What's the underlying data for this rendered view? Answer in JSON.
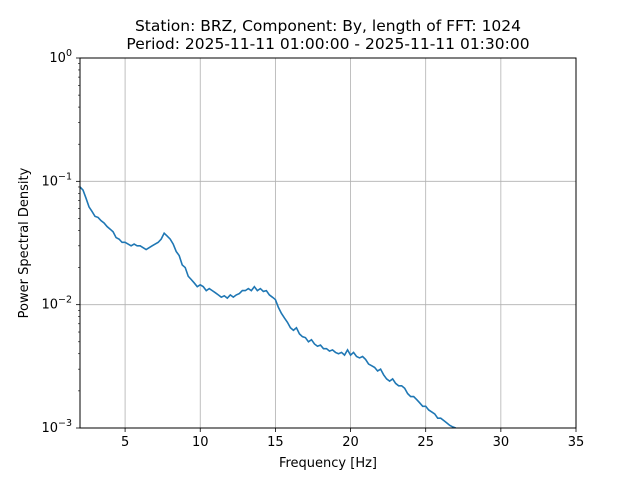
{
  "chart_data": {
    "type": "line",
    "title_line1": "Station: BRZ, Component: By, length of FFT: 1024",
    "title_line2": "Period: 2025-11-11 01:00:00 - 2025-11-11 01:30:00",
    "xlabel": "Frequency [Hz]",
    "ylabel": "Power Spectral Density",
    "xlim": [
      2,
      35
    ],
    "ylim": [
      0.001,
      1
    ],
    "yscale": "log",
    "grid": true,
    "x_ticks": [
      5,
      10,
      15,
      20,
      25,
      30,
      35
    ],
    "x_tick_labels": [
      "5",
      "10",
      "15",
      "20",
      "25",
      "30",
      "35"
    ],
    "y_ticks": [
      0.001,
      0.01,
      0.1,
      1
    ],
    "y_tick_labels": [
      {
        "base": "10",
        "exp": "−3"
      },
      {
        "base": "10",
        "exp": "−2"
      },
      {
        "base": "10",
        "exp": "−1"
      },
      {
        "base": "10",
        "exp": "0"
      }
    ],
    "line_color": "#1f77b4",
    "series": [
      {
        "x": [
          2.0,
          2.2,
          2.4,
          2.6,
          2.8,
          3.0,
          3.2,
          3.4,
          3.6,
          3.8,
          4.0,
          4.2,
          4.4,
          4.6,
          4.8,
          5.0,
          5.2,
          5.4,
          5.6,
          5.8,
          6.0,
          6.2,
          6.4,
          6.6,
          6.8,
          7.0,
          7.2,
          7.4,
          7.6,
          7.8,
          8.0,
          8.2,
          8.4,
          8.6,
          8.8,
          9.0,
          9.2,
          9.4,
          9.6,
          9.8,
          10.0,
          10.2,
          10.4,
          10.6,
          10.8,
          11.0,
          11.2,
          11.4,
          11.6,
          11.8,
          12.0,
          12.2,
          12.4,
          12.6,
          12.8,
          13.0,
          13.2,
          13.4,
          13.6,
          13.8,
          14.0,
          14.2,
          14.4,
          14.6,
          14.8,
          15.0,
          15.2,
          15.4,
          15.6,
          15.8,
          16.0,
          16.2,
          16.4,
          16.6,
          16.8,
          17.0,
          17.2,
          17.4,
          17.6,
          17.8,
          18.0,
          18.2,
          18.4,
          18.6,
          18.8,
          19.0,
          19.2,
          19.4,
          19.6,
          19.8,
          20.0,
          20.2,
          20.4,
          20.6,
          20.8,
          21.0,
          21.2,
          21.4,
          21.6,
          21.8,
          22.0,
          22.2,
          22.4,
          22.6,
          22.8,
          23.0,
          23.2,
          23.4,
          23.6,
          23.8,
          24.0,
          24.2,
          24.4,
          24.6,
          24.8,
          25.0,
          25.2,
          25.4,
          25.6,
          25.8,
          26.0,
          26.2,
          26.4,
          26.6,
          26.8,
          27.0
        ],
        "y": [
          0.09,
          0.085,
          0.073,
          0.062,
          0.057,
          0.052,
          0.051,
          0.048,
          0.046,
          0.043,
          0.041,
          0.039,
          0.035,
          0.034,
          0.032,
          0.032,
          0.031,
          0.03,
          0.031,
          0.03,
          0.03,
          0.029,
          0.028,
          0.029,
          0.03,
          0.031,
          0.032,
          0.034,
          0.038,
          0.036,
          0.034,
          0.031,
          0.027,
          0.025,
          0.021,
          0.02,
          0.017,
          0.016,
          0.015,
          0.014,
          0.0145,
          0.014,
          0.013,
          0.0135,
          0.013,
          0.0125,
          0.012,
          0.0115,
          0.0118,
          0.0113,
          0.012,
          0.0115,
          0.012,
          0.0123,
          0.013,
          0.013,
          0.0135,
          0.013,
          0.014,
          0.013,
          0.0135,
          0.0128,
          0.013,
          0.012,
          0.0115,
          0.011,
          0.0095,
          0.0085,
          0.0078,
          0.0072,
          0.0065,
          0.0062,
          0.0065,
          0.0058,
          0.0055,
          0.0054,
          0.005,
          0.0052,
          0.0048,
          0.0046,
          0.0047,
          0.0044,
          0.0044,
          0.0042,
          0.0043,
          0.0041,
          0.004,
          0.0041,
          0.0039,
          0.0043,
          0.0039,
          0.0041,
          0.0038,
          0.0037,
          0.0038,
          0.0036,
          0.0033,
          0.0032,
          0.0031,
          0.0029,
          0.003,
          0.0027,
          0.0025,
          0.0024,
          0.0025,
          0.0023,
          0.0022,
          0.0022,
          0.0021,
          0.0019,
          0.0018,
          0.0018,
          0.0017,
          0.0016,
          0.0015,
          0.0015,
          0.0014,
          0.00135,
          0.0013,
          0.0012,
          0.0012,
          0.00115,
          0.0011,
          0.00105,
          0.00102,
          0.001
        ]
      }
    ]
  }
}
